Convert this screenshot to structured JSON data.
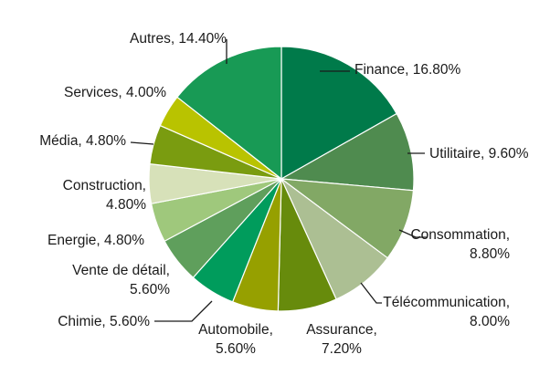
{
  "chart_data": {
    "type": "pie",
    "start_angle_deg": 0,
    "direction": "clockwise",
    "legend": "none",
    "slices": [
      {
        "label": "Finance",
        "value": 16.8,
        "display": "Finance, 16.80%",
        "color": "#007a4a"
      },
      {
        "label": "Utilitaire",
        "value": 9.6,
        "display": "Utilitaire, 9.60%",
        "color": "#4f8b4f"
      },
      {
        "label": "Consommation",
        "value": 8.8,
        "display": "Consommation, 8.80%",
        "color": "#82a865"
      },
      {
        "label": "Télécommunication",
        "value": 8.0,
        "display": "Télécommunication, 8.00%",
        "color": "#acbf93"
      },
      {
        "label": "Assurance",
        "value": 7.2,
        "display": "Assurance, 7.20%",
        "color": "#678b0c"
      },
      {
        "label": "Automobile",
        "value": 5.6,
        "display": "Automobile, 5.60%",
        "color": "#96a000"
      },
      {
        "label": "Chimie",
        "value": 5.6,
        "display": "Chimie, 5.60%",
        "color": "#009c5c"
      },
      {
        "label": "Vente de détail",
        "value": 5.6,
        "display": "Vente de détail, 5.60%",
        "color": "#5f9f5c"
      },
      {
        "label": "Energie",
        "value": 4.8,
        "display": "Energie, 4.80%",
        "color": "#9fc87c"
      },
      {
        "label": "Construction",
        "value": 4.8,
        "display": "Construction, 4.80%",
        "color": "#d7e1b9"
      },
      {
        "label": "Média",
        "value": 4.8,
        "display": "Média, 4.80%",
        "color": "#7a9c10"
      },
      {
        "label": "Services",
        "value": 4.0,
        "display": "Services, 4.00%",
        "color": "#b9c300"
      },
      {
        "label": "Autres",
        "value": 14.4,
        "display": "Autres, 14.40%",
        "color": "#189a55"
      }
    ]
  }
}
